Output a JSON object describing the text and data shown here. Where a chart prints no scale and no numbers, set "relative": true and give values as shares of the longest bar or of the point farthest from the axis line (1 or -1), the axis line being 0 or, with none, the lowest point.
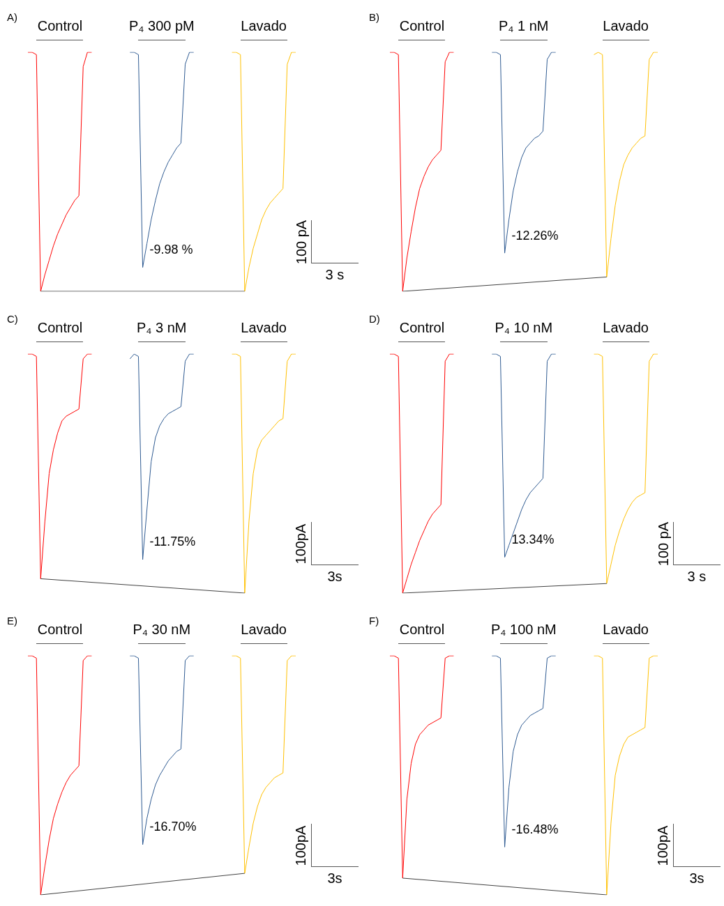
{
  "chart_data": [
    {
      "type": "line",
      "title": "A)",
      "relative": true,
      "marker": "none",
      "xlabel": "3 s",
      "ylabel": "100 pA",
      "annotations": [
        "-9.98 %"
      ],
      "categories": [
        null,
        null,
        null,
        null,
        null,
        null,
        null,
        null,
        null,
        null,
        null,
        null,
        null,
        null,
        null,
        null,
        null,
        null,
        null,
        null,
        null,
        null,
        null,
        null,
        null,
        null,
        null,
        null,
        null,
        null,
        null,
        null,
        null,
        null,
        null,
        null,
        null,
        null,
        null,
        null,
        null,
        null,
        null,
        null,
        null,
        null,
        null,
        null,
        null,
        null,
        null,
        null,
        null,
        null,
        null,
        null,
        null,
        null,
        null,
        null,
        null,
        null,
        null,
        null
      ],
      "series": [
        {
          "name": "Control",
          "color": "#ff0000",
          "values": [
            1,
            1,
            0.99,
            0,
            0.07,
            0.13,
            0.19,
            0.24,
            0.28,
            0.32,
            0.35,
            0.38,
            0.4,
            0.94,
            1,
            1,
            null,
            null,
            null,
            null,
            null,
            null,
            null,
            null,
            null,
            null,
            null,
            null,
            null,
            null,
            null,
            null,
            null,
            null,
            null,
            null,
            null,
            null,
            null,
            null,
            null,
            null,
            null,
            null,
            null,
            null,
            null,
            null,
            null,
            null,
            null,
            null,
            null,
            null,
            null,
            null,
            null,
            null,
            null,
            null,
            null,
            null,
            null,
            null
          ]
        },
        {
          "name": "P₄ 300 pM",
          "color": "#2f5b92",
          "values": [
            null,
            null,
            null,
            null,
            null,
            null,
            null,
            null,
            null,
            null,
            null,
            null,
            null,
            null,
            null,
            null,
            null,
            null,
            null,
            null,
            null,
            null,
            null,
            null,
            1,
            1,
            0.99,
            0.1,
            0.2,
            0.3,
            0.38,
            0.45,
            0.5,
            0.54,
            0.57,
            0.6,
            0.62,
            0.95,
            1,
            1,
            null,
            null,
            null,
            null,
            null,
            null,
            null,
            null,
            null,
            null,
            null,
            null,
            null,
            null,
            null,
            null,
            null,
            null,
            null,
            null,
            null,
            null,
            null,
            null
          ]
        },
        {
          "name": "Lavado",
          "color": "#ffc000",
          "values": [
            null,
            null,
            null,
            null,
            null,
            null,
            null,
            null,
            null,
            null,
            null,
            null,
            null,
            null,
            null,
            null,
            null,
            null,
            null,
            null,
            null,
            null,
            null,
            null,
            null,
            null,
            null,
            null,
            null,
            null,
            null,
            null,
            null,
            null,
            null,
            null,
            null,
            null,
            null,
            null,
            null,
            null,
            null,
            null,
            null,
            null,
            null,
            null,
            1,
            1,
            0.99,
            0,
            0.1,
            0.18,
            0.24,
            0.3,
            0.34,
            0.37,
            0.39,
            0.41,
            0.43,
            0.95,
            1,
            1
          ]
        },
        {
          "color": "#404040",
          "values": [
            null,
            null,
            null,
            0,
            null,
            null,
            null,
            null,
            null,
            null,
            null,
            null,
            null,
            null,
            null,
            null,
            null,
            null,
            null,
            null,
            null,
            null,
            null,
            null,
            null,
            null,
            null,
            null,
            null,
            null,
            null,
            null,
            null,
            null,
            null,
            null,
            null,
            null,
            null,
            null,
            null,
            null,
            null,
            null,
            null,
            null,
            null,
            null,
            null,
            null,
            null,
            0,
            null,
            null,
            null,
            null,
            null,
            null,
            null,
            null,
            null,
            null,
            null,
            null
          ]
        }
      ]
    },
    {
      "type": "line",
      "title": "B)",
      "relative": true,
      "marker": "none",
      "annotations": [
        "-12.26%"
      ],
      "categories": [
        null,
        null,
        null,
        null,
        null,
        null,
        null,
        null,
        null,
        null,
        null,
        null,
        null,
        null,
        null,
        null,
        null,
        null,
        null,
        null,
        null,
        null,
        null,
        null,
        null,
        null,
        null,
        null,
        null,
        null,
        null,
        null,
        null,
        null,
        null,
        null,
        null,
        null,
        null,
        null,
        null,
        null,
        null,
        null,
        null,
        null,
        null,
        null,
        null,
        null,
        null,
        null,
        null,
        null,
        null,
        null,
        null,
        null,
        null,
        null,
        null,
        null,
        null,
        null
      ],
      "series": [
        {
          "name": "Control",
          "color": "#ff0000",
          "values": [
            1,
            1,
            0.99,
            0,
            0.14,
            0.25,
            0.35,
            0.43,
            0.48,
            0.52,
            0.55,
            0.57,
            0.59,
            0.96,
            1,
            1,
            null,
            null,
            null,
            null,
            null,
            null,
            null,
            null,
            null,
            null,
            null,
            null,
            null,
            null,
            null,
            null,
            null,
            null,
            null,
            null,
            null,
            null,
            null,
            null,
            null,
            null,
            null,
            null,
            null,
            null,
            null,
            null,
            null,
            null,
            null,
            null,
            null,
            null,
            null,
            null,
            null,
            null,
            null,
            null,
            null,
            null,
            null,
            null
          ]
        },
        {
          "name": "P₄ 1 nM",
          "color": "#2f5b92",
          "values": [
            null,
            null,
            null,
            null,
            null,
            null,
            null,
            null,
            null,
            null,
            null,
            null,
            null,
            null,
            null,
            null,
            null,
            null,
            null,
            null,
            null,
            null,
            null,
            null,
            1,
            1,
            0.99,
            0.16,
            0.3,
            0.42,
            0.5,
            0.56,
            0.6,
            0.62,
            0.64,
            0.65,
            0.67,
            0.97,
            1,
            1,
            null,
            null,
            null,
            null,
            null,
            null,
            null,
            null,
            null,
            null,
            null,
            null,
            null,
            null,
            null,
            null,
            null,
            null,
            null,
            null,
            null,
            null,
            null,
            null
          ]
        },
        {
          "name": "Lavado",
          "color": "#ffc000",
          "values": [
            null,
            null,
            null,
            null,
            null,
            null,
            null,
            null,
            null,
            null,
            null,
            null,
            null,
            null,
            null,
            null,
            null,
            null,
            null,
            null,
            null,
            null,
            null,
            null,
            null,
            null,
            null,
            null,
            null,
            null,
            null,
            null,
            null,
            null,
            null,
            null,
            null,
            null,
            null,
            null,
            null,
            null,
            null,
            null,
            null,
            null,
            null,
            null,
            0.99,
            1,
            0.99,
            0.06,
            0.22,
            0.36,
            0.46,
            0.53,
            0.57,
            0.6,
            0.62,
            0.64,
            0.65,
            0.97,
            1,
            1
          ]
        },
        {
          "color": "#404040",
          "values": [
            null,
            null,
            null,
            0,
            null,
            null,
            null,
            null,
            null,
            null,
            null,
            null,
            null,
            null,
            null,
            null,
            null,
            null,
            null,
            null,
            null,
            null,
            null,
            null,
            null,
            null,
            null,
            null,
            null,
            null,
            null,
            null,
            null,
            null,
            null,
            null,
            null,
            null,
            null,
            null,
            null,
            null,
            null,
            null,
            null,
            null,
            null,
            null,
            null,
            null,
            null,
            0.06,
            null,
            null,
            null,
            null,
            null,
            null,
            null,
            null,
            null,
            null,
            null,
            null
          ]
        }
      ]
    },
    {
      "type": "line",
      "title": "C)",
      "relative": true,
      "marker": "none",
      "xlabel": "3s",
      "ylabel": "100pA",
      "annotations": [
        "-11.75%"
      ],
      "categories": [
        null,
        null,
        null,
        null,
        null,
        null,
        null,
        null,
        null,
        null,
        null,
        null,
        null,
        null,
        null,
        null,
        null,
        null,
        null,
        null,
        null,
        null,
        null,
        null,
        null,
        null,
        null,
        null,
        null,
        null,
        null,
        null,
        null,
        null,
        null,
        null,
        null,
        null,
        null,
        null,
        null,
        null,
        null,
        null,
        null,
        null,
        null,
        null,
        null,
        null,
        null,
        null,
        null,
        null,
        null,
        null,
        null,
        null,
        null,
        null,
        null,
        null,
        null,
        null
      ],
      "series": [
        {
          "name": "Control",
          "color": "#ff0000",
          "values": [
            1,
            1,
            0.99,
            0.06,
            0.3,
            0.5,
            0.6,
            0.67,
            0.72,
            0.74,
            0.75,
            0.76,
            0.77,
            0.98,
            1,
            1,
            null,
            null,
            null,
            null,
            null,
            null,
            null,
            null,
            null,
            null,
            null,
            null,
            null,
            null,
            null,
            null,
            null,
            null,
            null,
            null,
            null,
            null,
            null,
            null,
            null,
            null,
            null,
            null,
            null,
            null,
            null,
            null,
            null,
            null,
            null,
            null,
            null,
            null,
            null,
            null,
            null,
            null,
            null,
            null,
            null,
            null,
            null,
            null
          ]
        },
        {
          "name": "P₄ 3 nM",
          "color": "#2f5b92",
          "values": [
            null,
            null,
            null,
            null,
            null,
            null,
            null,
            null,
            null,
            null,
            null,
            null,
            null,
            null,
            null,
            null,
            null,
            null,
            null,
            null,
            null,
            null,
            null,
            null,
            0.98,
            1,
            0.99,
            0.14,
            0.35,
            0.55,
            0.65,
            0.7,
            0.73,
            0.75,
            0.76,
            0.77,
            0.78,
            0.97,
            1,
            1,
            null,
            null,
            null,
            null,
            null,
            null,
            null,
            null,
            null,
            null,
            null,
            null,
            null,
            null,
            null,
            null,
            null,
            null,
            null,
            null,
            null,
            null,
            null,
            null
          ]
        },
        {
          "name": "Lavado",
          "color": "#ffc000",
          "values": [
            null,
            null,
            null,
            null,
            null,
            null,
            null,
            null,
            null,
            null,
            null,
            null,
            null,
            null,
            null,
            null,
            null,
            null,
            null,
            null,
            null,
            null,
            null,
            null,
            null,
            null,
            null,
            null,
            null,
            null,
            null,
            null,
            null,
            null,
            null,
            null,
            null,
            null,
            null,
            null,
            null,
            null,
            null,
            null,
            null,
            null,
            null,
            null,
            1,
            1,
            0.99,
            0,
            0.3,
            0.5,
            0.6,
            0.64,
            0.66,
            0.68,
            0.7,
            0.72,
            0.73,
            0.97,
            1,
            1
          ]
        },
        {
          "color": "#404040",
          "values": [
            null,
            null,
            null,
            0.06,
            null,
            null,
            null,
            null,
            null,
            null,
            null,
            null,
            null,
            null,
            null,
            null,
            null,
            null,
            null,
            null,
            null,
            null,
            null,
            null,
            null,
            null,
            null,
            null,
            null,
            null,
            null,
            null,
            null,
            null,
            null,
            null,
            null,
            null,
            null,
            null,
            null,
            null,
            null,
            null,
            null,
            null,
            null,
            null,
            null,
            null,
            null,
            0,
            null,
            null,
            null,
            null,
            null,
            null,
            null,
            null,
            null,
            null,
            null,
            null
          ]
        }
      ]
    },
    {
      "type": "line",
      "title": "D)",
      "relative": true,
      "marker": "none",
      "xlabel": "3 s",
      "ylabel": "100 pA",
      "annotations": [
        "13.34%"
      ],
      "categories": [
        null,
        null,
        null,
        null,
        null,
        null,
        null,
        null,
        null,
        null,
        null,
        null,
        null,
        null,
        null,
        null,
        null,
        null,
        null,
        null,
        null,
        null,
        null,
        null,
        null,
        null,
        null,
        null,
        null,
        null,
        null,
        null,
        null,
        null,
        null,
        null,
        null,
        null,
        null,
        null,
        null,
        null,
        null,
        null,
        null,
        null,
        null,
        null,
        null,
        null,
        null,
        null,
        null,
        null,
        null,
        null,
        null,
        null,
        null,
        null,
        null,
        null,
        null,
        null
      ],
      "series": [
        {
          "name": "Control",
          "color": "#ff0000",
          "values": [
            1,
            1,
            0.99,
            0,
            0.06,
            0.12,
            0.17,
            0.22,
            0.26,
            0.3,
            0.33,
            0.35,
            0.37,
            0.97,
            1,
            1,
            null,
            null,
            null,
            null,
            null,
            null,
            null,
            null,
            null,
            null,
            null,
            null,
            null,
            null,
            null,
            null,
            null,
            null,
            null,
            null,
            null,
            null,
            null,
            null,
            null,
            null,
            null,
            null,
            null,
            null,
            null,
            null,
            null,
            null,
            null,
            null,
            null,
            null,
            null,
            null,
            null,
            null,
            null,
            null,
            null,
            null,
            null,
            null
          ]
        },
        {
          "name": "P₄ 10 nM",
          "color": "#2f5b92",
          "values": [
            null,
            null,
            null,
            null,
            null,
            null,
            null,
            null,
            null,
            null,
            null,
            null,
            null,
            null,
            null,
            null,
            null,
            null,
            null,
            null,
            null,
            null,
            null,
            null,
            1,
            1,
            0.99,
            0.15,
            0.2,
            0.25,
            0.3,
            0.35,
            0.39,
            0.42,
            0.44,
            0.46,
            0.48,
            0.97,
            1,
            1,
            null,
            null,
            null,
            null,
            null,
            null,
            null,
            null,
            null,
            null,
            null,
            null,
            null,
            null,
            null,
            null,
            null,
            null,
            null,
            null,
            null,
            null,
            null,
            null
          ]
        },
        {
          "name": "Lavado",
          "color": "#ffc000",
          "values": [
            null,
            null,
            null,
            null,
            null,
            null,
            null,
            null,
            null,
            null,
            null,
            null,
            null,
            null,
            null,
            null,
            null,
            null,
            null,
            null,
            null,
            null,
            null,
            null,
            null,
            null,
            null,
            null,
            null,
            null,
            null,
            null,
            null,
            null,
            null,
            null,
            null,
            null,
            null,
            null,
            null,
            null,
            null,
            null,
            null,
            null,
            null,
            null,
            1,
            1,
            0.99,
            0.04,
            0.12,
            0.2,
            0.26,
            0.31,
            0.35,
            0.38,
            0.4,
            0.41,
            0.42,
            0.97,
            1,
            1
          ]
        },
        {
          "color": "#404040",
          "values": [
            null,
            null,
            null,
            0,
            null,
            null,
            null,
            null,
            null,
            null,
            null,
            null,
            null,
            null,
            null,
            null,
            null,
            null,
            null,
            null,
            null,
            null,
            null,
            null,
            null,
            null,
            null,
            null,
            null,
            null,
            null,
            null,
            null,
            null,
            null,
            null,
            null,
            null,
            null,
            null,
            null,
            null,
            null,
            null,
            null,
            null,
            null,
            null,
            null,
            null,
            null,
            0.04,
            null,
            null,
            null,
            null,
            null,
            null,
            null,
            null,
            null,
            null,
            null,
            null
          ]
        }
      ]
    },
    {
      "type": "line",
      "title": "E)",
      "relative": true,
      "marker": "none",
      "xlabel": "3s",
      "ylabel": "100pA",
      "annotations": [
        "-16.70%"
      ],
      "categories": [
        null,
        null,
        null,
        null,
        null,
        null,
        null,
        null,
        null,
        null,
        null,
        null,
        null,
        null,
        null,
        null,
        null,
        null,
        null,
        null,
        null,
        null,
        null,
        null,
        null,
        null,
        null,
        null,
        null,
        null,
        null,
        null,
        null,
        null,
        null,
        null,
        null,
        null,
        null,
        null,
        null,
        null,
        null,
        null,
        null,
        null,
        null,
        null,
        null,
        null,
        null,
        null,
        null,
        null,
        null,
        null,
        null,
        null,
        null,
        null,
        null,
        null,
        null,
        null
      ],
      "series": [
        {
          "name": "Control",
          "color": "#ff0000",
          "values": [
            1,
            1,
            0.99,
            0,
            0.12,
            0.23,
            0.32,
            0.38,
            0.43,
            0.47,
            0.5,
            0.52,
            0.54,
            0.98,
            1,
            1,
            null,
            null,
            null,
            null,
            null,
            null,
            null,
            null,
            null,
            null,
            null,
            null,
            null,
            null,
            null,
            null,
            null,
            null,
            null,
            null,
            null,
            null,
            null,
            null,
            null,
            null,
            null,
            null,
            null,
            null,
            null,
            null,
            null,
            null,
            null,
            null,
            null,
            null,
            null,
            null,
            null,
            null,
            null,
            null,
            null,
            null,
            null,
            null
          ]
        },
        {
          "name": "P₄ 30 nM",
          "color": "#2f5b92",
          "values": [
            null,
            null,
            null,
            null,
            null,
            null,
            null,
            null,
            null,
            null,
            null,
            null,
            null,
            null,
            null,
            null,
            null,
            null,
            null,
            null,
            null,
            null,
            null,
            null,
            1,
            1,
            0.99,
            0.21,
            0.32,
            0.4,
            0.46,
            0.5,
            0.53,
            0.56,
            0.58,
            0.6,
            0.61,
            0.98,
            1,
            1,
            null,
            null,
            null,
            null,
            null,
            null,
            null,
            null,
            null,
            null,
            null,
            null,
            null,
            null,
            null,
            null,
            null,
            null,
            null,
            null,
            null,
            null,
            null,
            null
          ]
        },
        {
          "name": "Lavado",
          "color": "#ffc000",
          "values": [
            null,
            null,
            null,
            null,
            null,
            null,
            null,
            null,
            null,
            null,
            null,
            null,
            null,
            null,
            null,
            null,
            null,
            null,
            null,
            null,
            null,
            null,
            null,
            null,
            null,
            null,
            null,
            null,
            null,
            null,
            null,
            null,
            null,
            null,
            null,
            null,
            null,
            null,
            null,
            null,
            null,
            null,
            null,
            null,
            null,
            null,
            null,
            null,
            1,
            1,
            0.99,
            0.09,
            0.2,
            0.3,
            0.37,
            0.42,
            0.45,
            0.47,
            0.49,
            0.5,
            0.51,
            0.98,
            1,
            1
          ]
        },
        {
          "color": "#404040",
          "values": [
            null,
            null,
            null,
            0,
            null,
            null,
            null,
            null,
            null,
            null,
            null,
            null,
            null,
            null,
            null,
            null,
            null,
            null,
            null,
            null,
            null,
            null,
            null,
            null,
            null,
            null,
            null,
            null,
            null,
            null,
            null,
            null,
            null,
            null,
            null,
            null,
            null,
            null,
            null,
            null,
            null,
            null,
            null,
            null,
            null,
            null,
            null,
            null,
            null,
            null,
            null,
            0.09,
            null,
            null,
            null,
            null,
            null,
            null,
            null,
            null,
            null,
            null,
            null,
            null
          ]
        }
      ]
    },
    {
      "type": "line",
      "title": "F)",
      "relative": true,
      "marker": "none",
      "xlabel": "3s",
      "ylabel": "100pA",
      "annotations": [
        "-16.48%"
      ],
      "categories": [
        null,
        null,
        null,
        null,
        null,
        null,
        null,
        null,
        null,
        null,
        null,
        null,
        null,
        null,
        null,
        null,
        null,
        null,
        null,
        null,
        null,
        null,
        null,
        null,
        null,
        null,
        null,
        null,
        null,
        null,
        null,
        null,
        null,
        null,
        null,
        null,
        null,
        null,
        null,
        null,
        null,
        null,
        null,
        null,
        null,
        null,
        null,
        null,
        null,
        null,
        null,
        null,
        null,
        null,
        null,
        null,
        null,
        null,
        null,
        null,
        null,
        null,
        null,
        null
      ],
      "series": [
        {
          "name": "Control",
          "color": "#ff0000",
          "values": [
            1,
            1,
            0.99,
            0.07,
            0.4,
            0.55,
            0.63,
            0.67,
            0.69,
            0.71,
            0.72,
            0.73,
            0.74,
            0.99,
            1,
            1,
            null,
            null,
            null,
            null,
            null,
            null,
            null,
            null,
            null,
            null,
            null,
            null,
            null,
            null,
            null,
            null,
            null,
            null,
            null,
            null,
            null,
            null,
            null,
            null,
            null,
            null,
            null,
            null,
            null,
            null,
            null,
            null,
            null,
            null,
            null,
            null,
            null,
            null,
            null,
            null,
            null,
            null,
            null,
            null,
            null,
            null,
            null,
            null
          ]
        },
        {
          "name": "P₄ 100 nM",
          "color": "#2f5b92",
          "values": [
            null,
            null,
            null,
            null,
            null,
            null,
            null,
            null,
            null,
            null,
            null,
            null,
            null,
            null,
            null,
            null,
            null,
            null,
            null,
            null,
            null,
            null,
            null,
            null,
            1,
            1,
            0.99,
            0.2,
            0.45,
            0.6,
            0.67,
            0.71,
            0.73,
            0.75,
            0.76,
            0.77,
            0.78,
            0.99,
            1,
            1,
            null,
            null,
            null,
            null,
            null,
            null,
            null,
            null,
            null,
            null,
            null,
            null,
            null,
            null,
            null,
            null,
            null,
            null,
            null,
            null,
            null,
            null,
            null,
            null
          ]
        },
        {
          "name": "Lavado",
          "color": "#ffc000",
          "values": [
            null,
            null,
            null,
            null,
            null,
            null,
            null,
            null,
            null,
            null,
            null,
            null,
            null,
            null,
            null,
            null,
            null,
            null,
            null,
            null,
            null,
            null,
            null,
            null,
            null,
            null,
            null,
            null,
            null,
            null,
            null,
            null,
            null,
            null,
            null,
            null,
            null,
            null,
            null,
            null,
            null,
            null,
            null,
            null,
            null,
            null,
            null,
            null,
            1,
            1,
            0.99,
            0,
            0.3,
            0.5,
            0.58,
            0.63,
            0.66,
            0.67,
            0.68,
            0.69,
            0.7,
            0.99,
            1,
            1
          ]
        },
        {
          "color": "#404040",
          "values": [
            null,
            null,
            null,
            0.07,
            null,
            null,
            null,
            null,
            null,
            null,
            null,
            null,
            null,
            null,
            null,
            null,
            null,
            null,
            null,
            null,
            null,
            null,
            null,
            null,
            null,
            null,
            null,
            null,
            null,
            null,
            null,
            null,
            null,
            null,
            null,
            null,
            null,
            null,
            null,
            null,
            null,
            null,
            null,
            null,
            null,
            null,
            null,
            null,
            null,
            null,
            null,
            0,
            null,
            null,
            null,
            null,
            null,
            null,
            null,
            null,
            null,
            null,
            null,
            null
          ]
        }
      ]
    }
  ]
}
